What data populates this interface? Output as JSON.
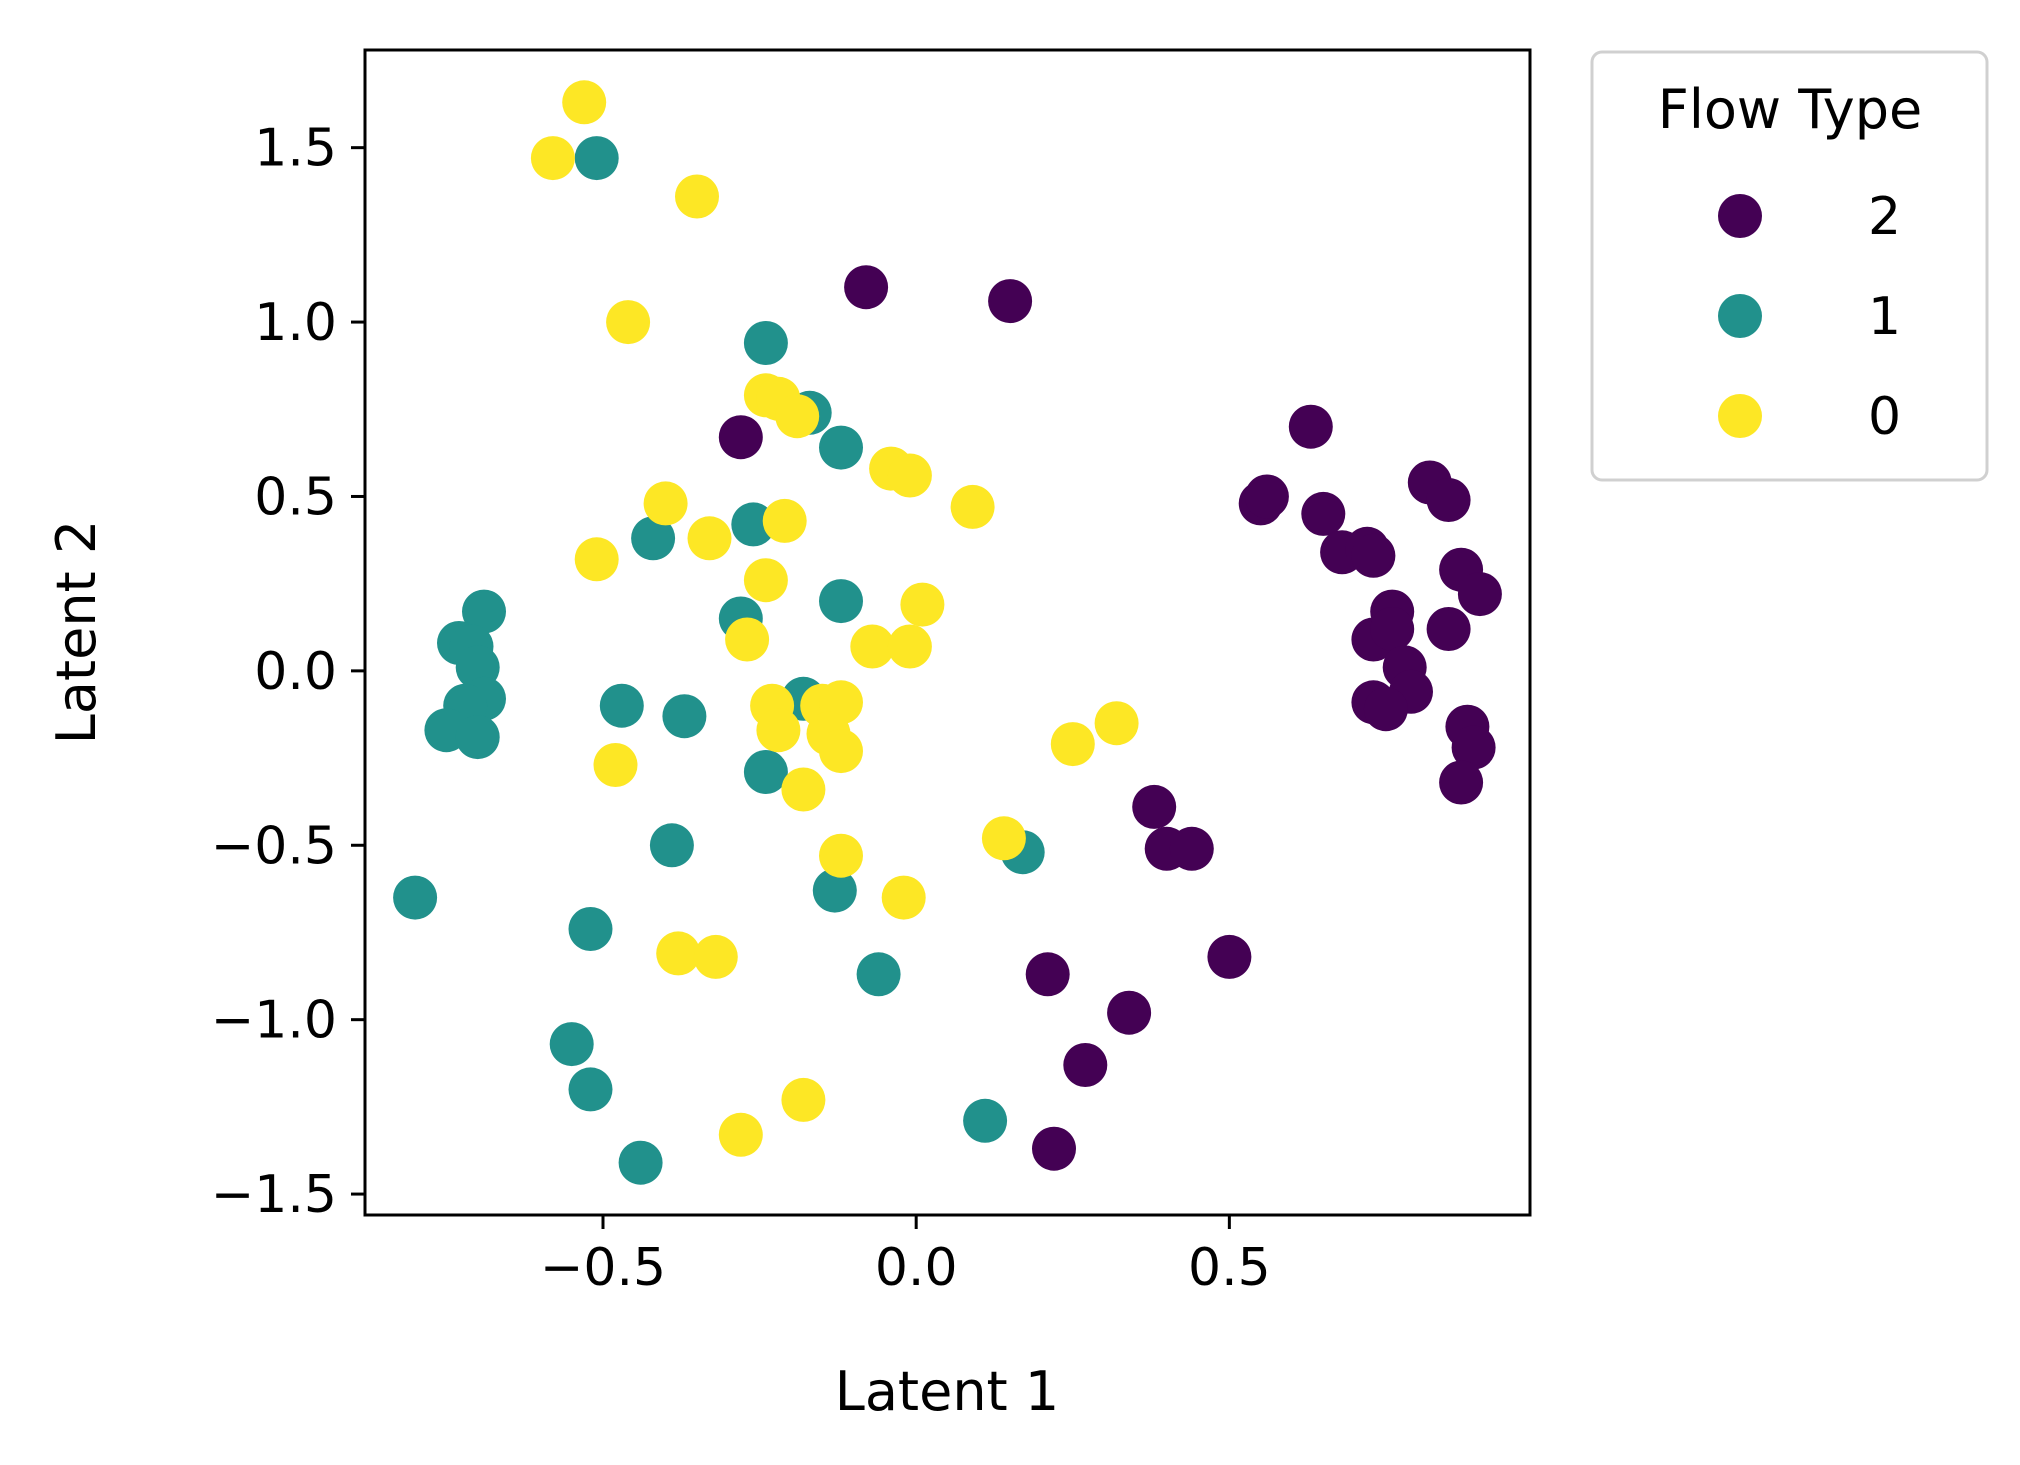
{
  "chart_data": {
    "type": "scatter",
    "title": "",
    "xlabel": "Latent 1",
    "ylabel": "Latent 2",
    "xlim": [
      -0.88,
      0.98
    ],
    "ylim": [
      -1.56,
      1.78
    ],
    "xticks": [
      -0.5,
      0.0,
      0.5
    ],
    "yticks": [
      -1.5,
      -1.0,
      -0.5,
      0.0,
      0.5,
      1.0,
      1.5
    ],
    "xtick_labels": [
      "−0.5",
      "0.0",
      "0.5"
    ],
    "ytick_labels": [
      "−1.5",
      "−1.0",
      "−0.5",
      "0.0",
      "0.5",
      "1.0",
      "1.5"
    ],
    "grid": false,
    "legend": {
      "title": "Flow Type",
      "position": "outside-right-top",
      "entries": [
        "2",
        "1",
        "0"
      ]
    },
    "series": [
      {
        "name": "2",
        "color": "#440154",
        "points": [
          [
            -0.08,
            1.1
          ],
          [
            0.15,
            1.06
          ],
          [
            -0.28,
            0.67
          ],
          [
            0.63,
            0.7
          ],
          [
            0.55,
            0.48
          ],
          [
            0.56,
            0.5
          ],
          [
            0.65,
            0.45
          ],
          [
            0.68,
            0.34
          ],
          [
            0.72,
            0.35
          ],
          [
            0.73,
            0.33
          ],
          [
            0.82,
            0.54
          ],
          [
            0.85,
            0.49
          ],
          [
            0.87,
            0.29
          ],
          [
            0.9,
            0.22
          ],
          [
            0.76,
            0.17
          ],
          [
            0.73,
            0.09
          ],
          [
            0.76,
            0.12
          ],
          [
            0.85,
            0.12
          ],
          [
            0.78,
            0.01
          ],
          [
            0.79,
            -0.06
          ],
          [
            0.73,
            -0.09
          ],
          [
            0.75,
            -0.11
          ],
          [
            0.88,
            -0.16
          ],
          [
            0.89,
            -0.22
          ],
          [
            0.87,
            -0.32
          ],
          [
            0.38,
            -0.39
          ],
          [
            0.4,
            -0.51
          ],
          [
            0.44,
            -0.51
          ],
          [
            0.5,
            -0.82
          ],
          [
            0.21,
            -0.87
          ],
          [
            0.34,
            -0.98
          ],
          [
            0.27,
            -1.13
          ],
          [
            0.22,
            -1.37
          ]
        ]
      },
      {
        "name": "1",
        "color": "#21918c",
        "points": [
          [
            -0.51,
            1.47
          ],
          [
            -0.24,
            0.94
          ],
          [
            -0.17,
            0.74
          ],
          [
            -0.12,
            0.64
          ],
          [
            -0.26,
            0.42
          ],
          [
            -0.42,
            0.38
          ],
          [
            -0.28,
            0.15
          ],
          [
            -0.12,
            0.2
          ],
          [
            -0.69,
            0.17
          ],
          [
            -0.73,
            0.08
          ],
          [
            -0.71,
            0.07
          ],
          [
            -0.7,
            0.01
          ],
          [
            -0.69,
            -0.08
          ],
          [
            -0.72,
            -0.1
          ],
          [
            -0.75,
            -0.17
          ],
          [
            -0.7,
            -0.19
          ],
          [
            -0.47,
            -0.1
          ],
          [
            -0.37,
            -0.13
          ],
          [
            -0.18,
            -0.08
          ],
          [
            -0.24,
            -0.29
          ],
          [
            -0.39,
            -0.5
          ],
          [
            -0.13,
            -0.63
          ],
          [
            0.17,
            -0.52
          ],
          [
            -0.8,
            -0.65
          ],
          [
            -0.52,
            -0.74
          ],
          [
            -0.06,
            -0.87
          ],
          [
            -0.55,
            -1.07
          ],
          [
            -0.52,
            -1.2
          ],
          [
            -0.44,
            -1.41
          ],
          [
            0.11,
            -1.29
          ]
        ]
      },
      {
        "name": "0",
        "color": "#fde725",
        "points": [
          [
            -0.53,
            1.63
          ],
          [
            -0.58,
            1.47
          ],
          [
            -0.35,
            1.36
          ],
          [
            -0.46,
            1.0
          ],
          [
            -0.24,
            0.79
          ],
          [
            -0.22,
            0.78
          ],
          [
            -0.19,
            0.73
          ],
          [
            -0.04,
            0.58
          ],
          [
            -0.01,
            0.56
          ],
          [
            0.09,
            0.47
          ],
          [
            -0.4,
            0.48
          ],
          [
            -0.21,
            0.43
          ],
          [
            -0.33,
            0.38
          ],
          [
            -0.51,
            0.32
          ],
          [
            -0.24,
            0.26
          ],
          [
            0.01,
            0.19
          ],
          [
            -0.27,
            0.09
          ],
          [
            -0.07,
            0.07
          ],
          [
            -0.01,
            0.07
          ],
          [
            -0.23,
            -0.1
          ],
          [
            -0.15,
            -0.1
          ],
          [
            -0.12,
            -0.09
          ],
          [
            -0.22,
            -0.17
          ],
          [
            -0.14,
            -0.18
          ],
          [
            -0.12,
            -0.23
          ],
          [
            -0.18,
            -0.34
          ],
          [
            -0.48,
            -0.27
          ],
          [
            0.25,
            -0.21
          ],
          [
            0.32,
            -0.15
          ],
          [
            0.14,
            -0.48
          ],
          [
            -0.12,
            -0.53
          ],
          [
            -0.02,
            -0.65
          ],
          [
            -0.38,
            -0.81
          ],
          [
            -0.32,
            -0.82
          ],
          [
            -0.18,
            -1.23
          ],
          [
            -0.28,
            -1.33
          ]
        ]
      }
    ]
  }
}
